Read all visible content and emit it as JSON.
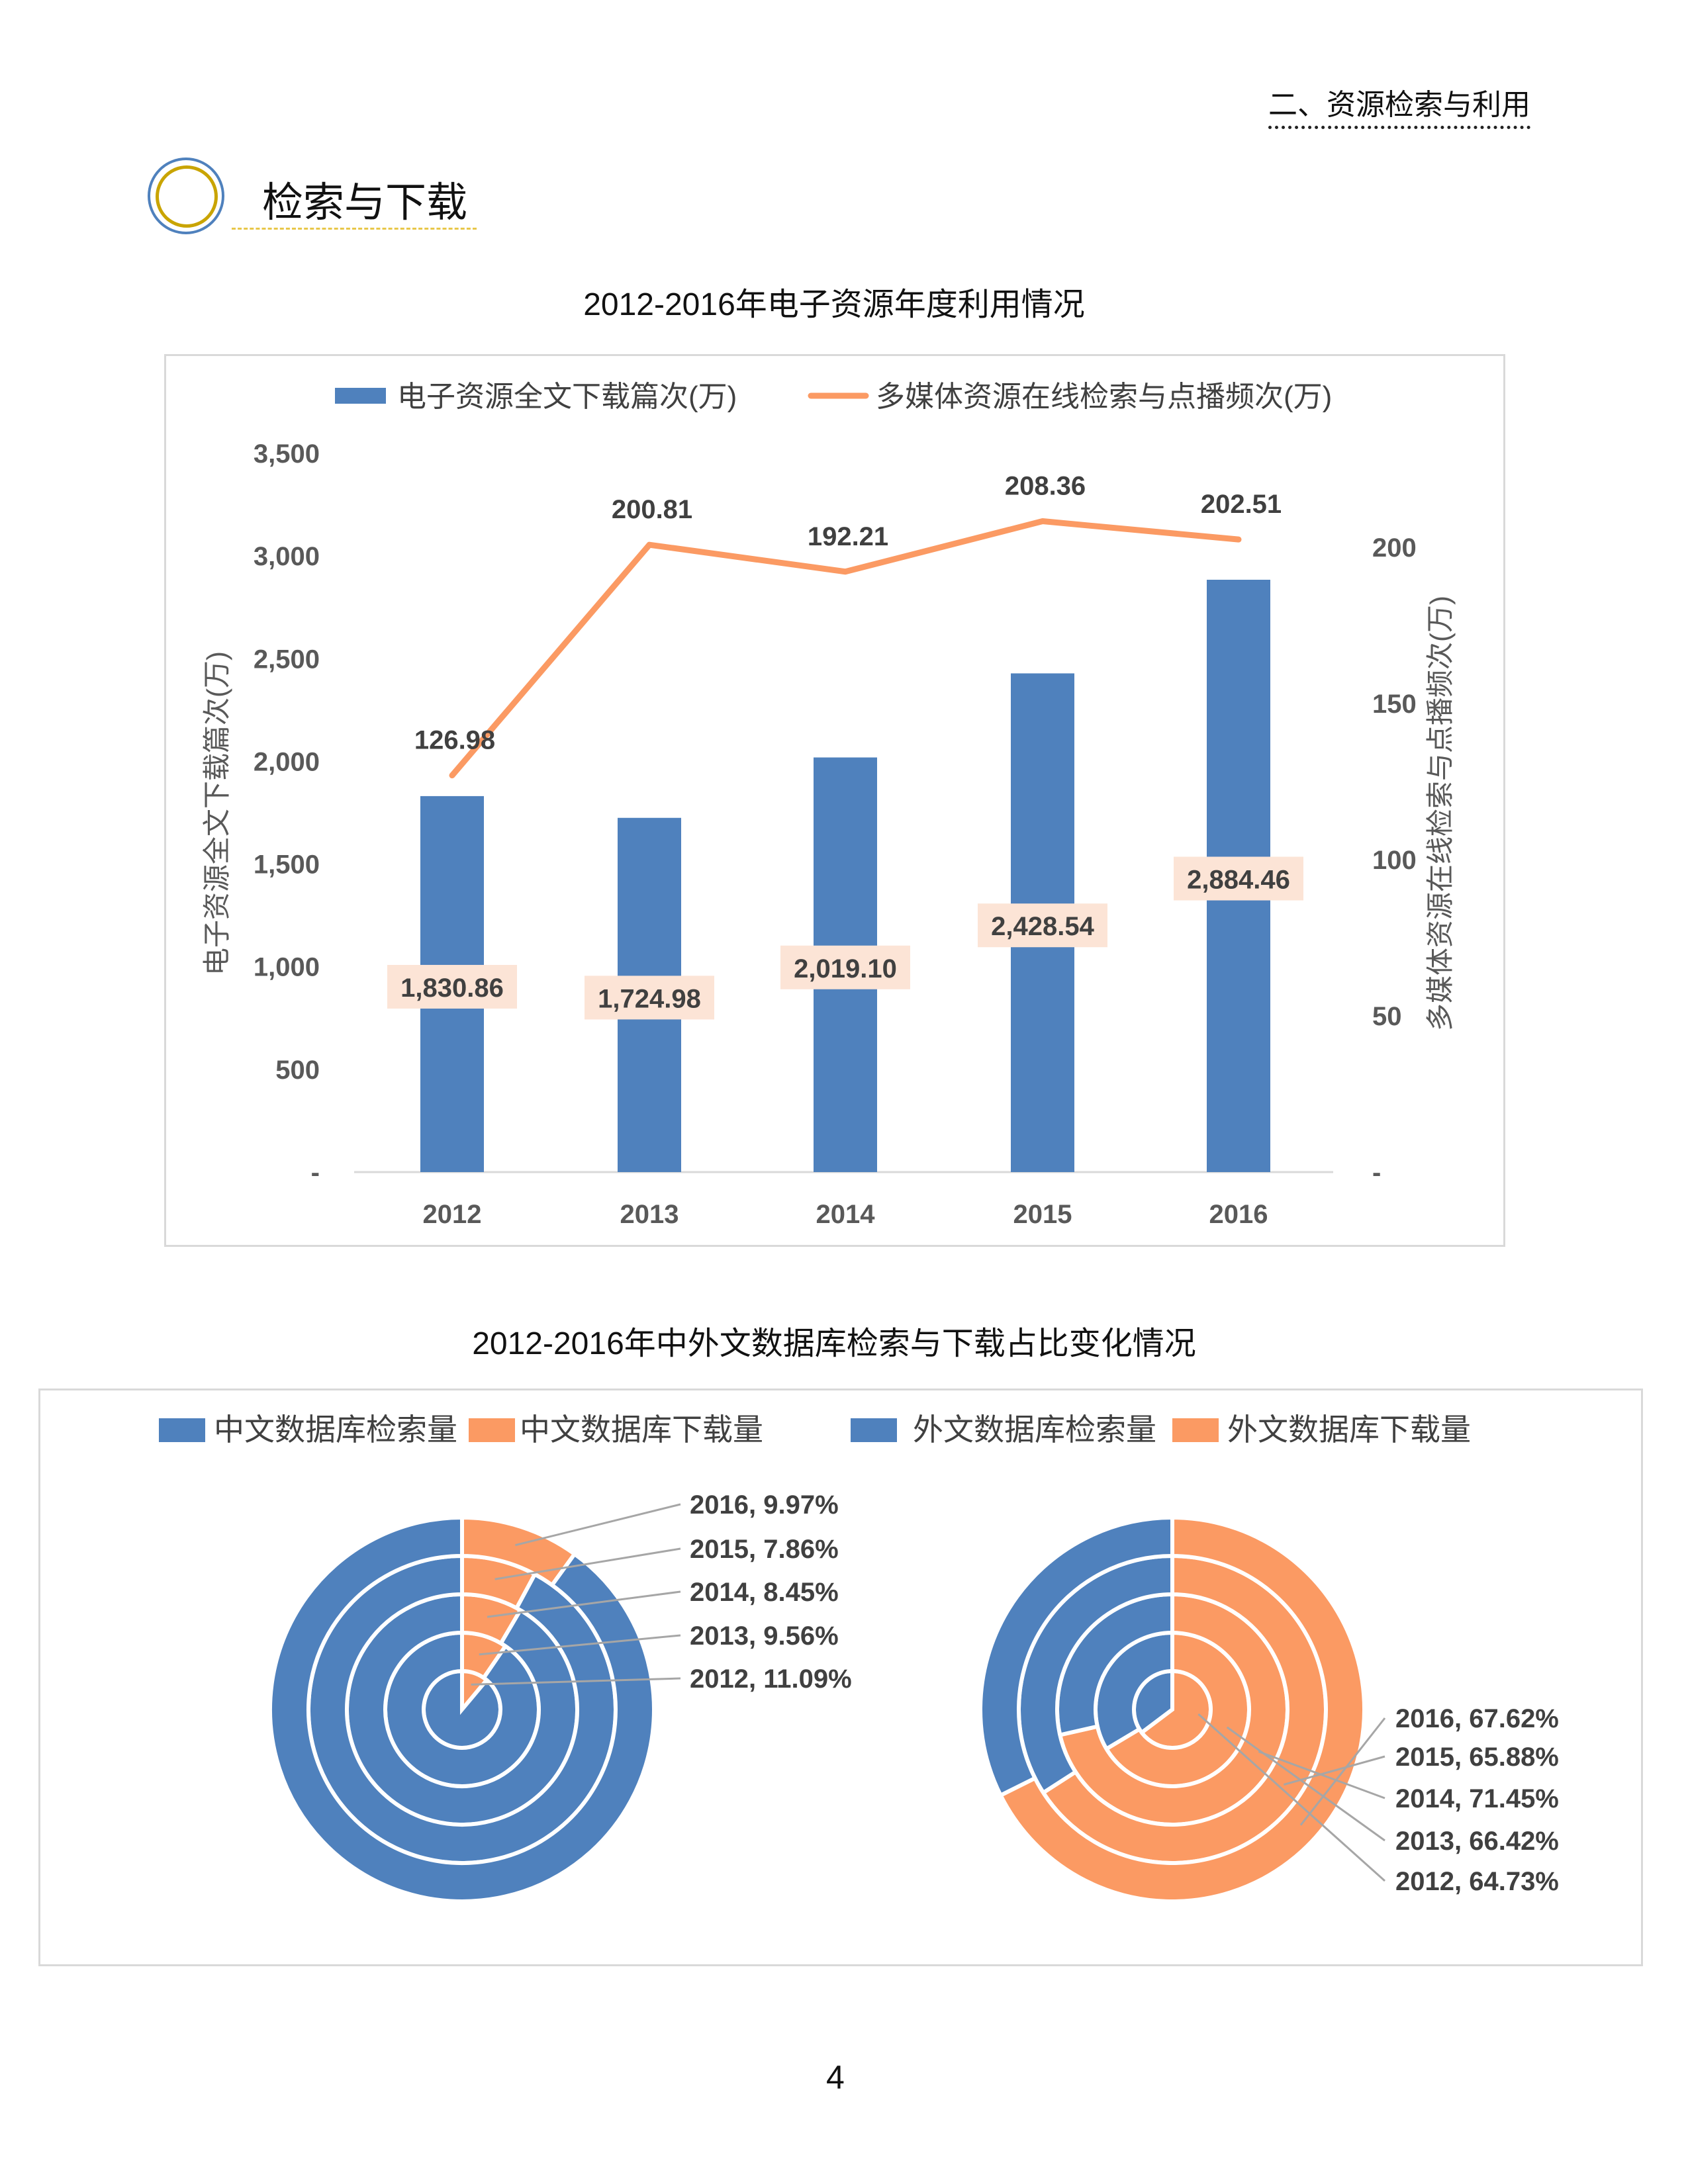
{
  "header": {
    "section": "二、资源检索与利用",
    "title": "检索与下载"
  },
  "colors": {
    "blue": "#4f81bd",
    "orange": "#fb9a63",
    "label_bg": "#fce4d6"
  },
  "chart_data": [
    {
      "type": "bar+line",
      "title": "2012-2016年电子资源年度利用情况",
      "categories": [
        "2012",
        "2013",
        "2014",
        "2015",
        "2016"
      ],
      "series": [
        {
          "name": "电子资源全文下载篇次(万)",
          "type": "bar",
          "axis": "left",
          "values": [
            1830.86,
            1724.98,
            2019.1,
            2428.54,
            2884.46
          ],
          "labels": [
            "1,830.86",
            "1,724.98",
            "2,019.10",
            "2,428.54",
            "2,884.46"
          ]
        },
        {
          "name": "多媒体资源在线检索与点播频次(万)",
          "type": "line",
          "axis": "right",
          "values": [
            126.98,
            200.81,
            192.21,
            208.36,
            202.51
          ],
          "labels": [
            "126.98",
            "200.81",
            "192.21",
            "208.36",
            "202.51"
          ]
        }
      ],
      "ylabel": "电子资源全文下载篇次(万)",
      "y2label": "多媒体资源在线检索与点播频次(万)",
      "ylim": [
        0,
        3500
      ],
      "yticks": [
        "-",
        "500",
        "1,000",
        "1,500",
        "2,000",
        "2,500",
        "3,000",
        "3,500"
      ],
      "y2ticks": [
        "-",
        "50",
        "100",
        "150",
        "200"
      ],
      "legend": "top",
      "grid": false
    },
    {
      "type": "pie",
      "title": "2012-2016年中外文数据库检索与下载占比变化情况",
      "legend": "top",
      "legend_entries": [
        "中文数据库检索量",
        "中文数据库下载量",
        "外文数据库检索量",
        "外文数据库下载量"
      ],
      "pies": [
        {
          "rings_inner_to_outer": [
            "2012",
            "2013",
            "2014",
            "2015",
            "2016"
          ],
          "download_pct": [
            11.09,
            9.56,
            8.45,
            7.86,
            9.97
          ],
          "labels": [
            "2012, 11.09%",
            "2013, 9.56%",
            "2014, 8.45%",
            "2015, 7.86%",
            "2016, 9.97%"
          ]
        },
        {
          "rings_inner_to_outer": [
            "2012",
            "2013",
            "2014",
            "2015",
            "2016"
          ],
          "download_pct": [
            64.73,
            66.42,
            71.45,
            65.88,
            67.62
          ],
          "labels": [
            "2012, 64.73%",
            "2013, 66.42%",
            "2014, 71.45%",
            "2015, 65.88%",
            "2016, 67.62%"
          ]
        }
      ]
    }
  ],
  "page_number": "4"
}
